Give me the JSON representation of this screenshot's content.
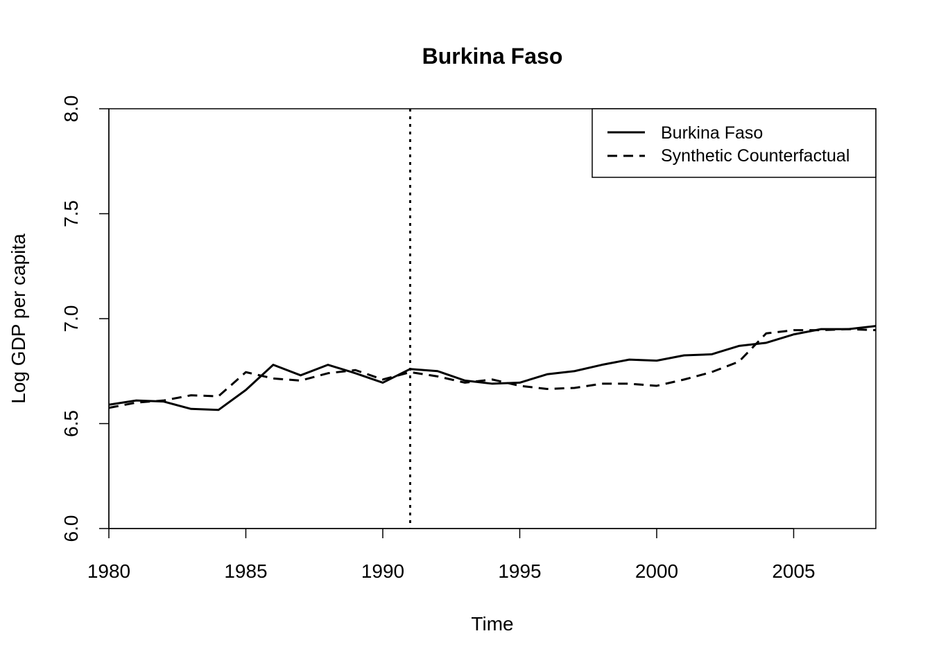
{
  "chart_data": {
    "type": "line",
    "title": "Burkina Faso",
    "xlabel": "Time",
    "ylabel": "Log GDP per capita",
    "xlim": [
      1980,
      2008
    ],
    "ylim": [
      6.0,
      8.0
    ],
    "x_ticks": [
      1980,
      1985,
      1990,
      1995,
      2000,
      2005
    ],
    "x_tick_labels": [
      "1980",
      "1985",
      "1990",
      "1995",
      "2000",
      "2005"
    ],
    "y_ticks": [
      6.0,
      6.5,
      7.0,
      7.5,
      8.0
    ],
    "y_tick_labels": [
      "6.0",
      "6.5",
      "7.0",
      "7.5",
      "8.0"
    ],
    "treatment_year": 1991,
    "legend_position": "top-right",
    "x": [
      1980,
      1981,
      1982,
      1983,
      1984,
      1985,
      1986,
      1987,
      1988,
      1989,
      1990,
      1991,
      1992,
      1993,
      1994,
      1995,
      1996,
      1997,
      1998,
      1999,
      2000,
      2001,
      2002,
      2003,
      2004,
      2005,
      2006,
      2007,
      2008
    ],
    "series": [
      {
        "name": "Burkina Faso",
        "style": "solid",
        "values": [
          6.59,
          6.61,
          6.605,
          6.57,
          6.565,
          6.66,
          6.78,
          6.73,
          6.78,
          6.74,
          6.695,
          6.76,
          6.75,
          6.705,
          6.69,
          6.695,
          6.735,
          6.75,
          6.78,
          6.805,
          6.8,
          6.825,
          6.83,
          6.87,
          6.885,
          6.925,
          6.95,
          6.95,
          6.965
        ]
      },
      {
        "name": "Synthetic Counterfactual",
        "style": "dashed",
        "values": [
          6.575,
          6.6,
          6.61,
          6.635,
          6.63,
          6.745,
          6.715,
          6.705,
          6.74,
          6.755,
          6.71,
          6.745,
          6.725,
          6.695,
          6.71,
          6.68,
          6.665,
          6.67,
          6.69,
          6.69,
          6.68,
          6.71,
          6.745,
          6.795,
          6.93,
          6.945,
          6.945,
          6.95,
          6.945
        ]
      }
    ]
  }
}
